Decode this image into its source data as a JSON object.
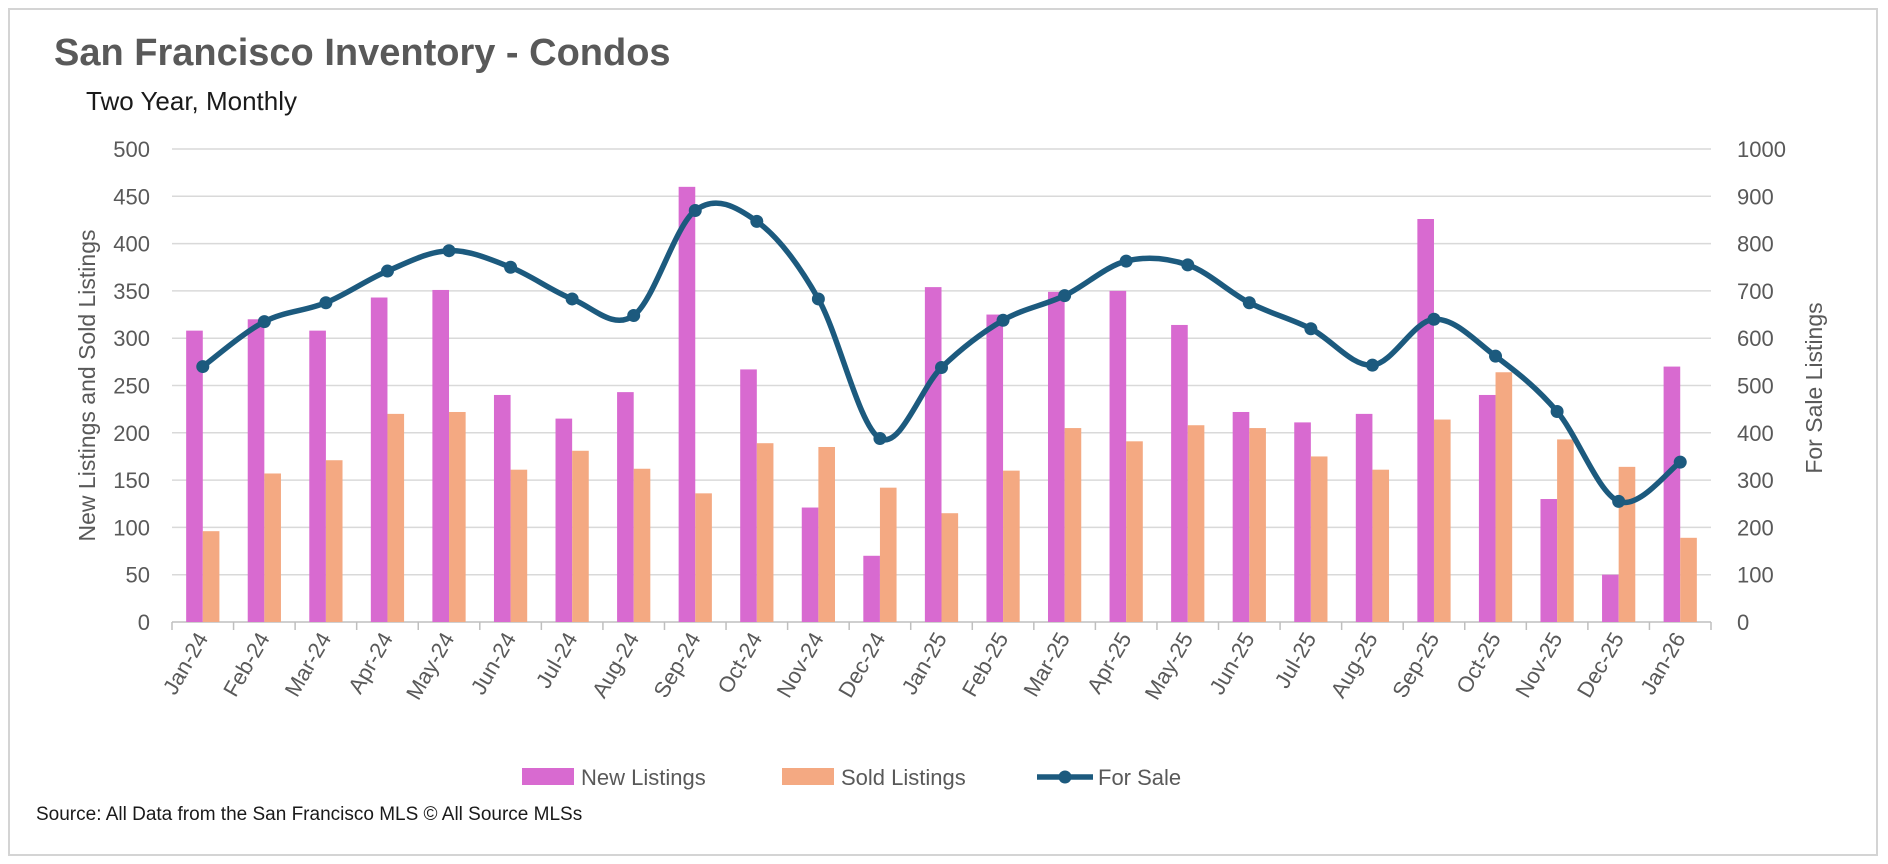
{
  "title": "San Francisco  Inventory - Condos",
  "subtitle": "Two Year, Monthly",
  "source": "Source: All Data from the San Francisco MLS © All Source MLSs",
  "chart_data": {
    "type": "bar",
    "categories": [
      "Jan-24",
      "Feb-24",
      "Mar-24",
      "Apr-24",
      "May-24",
      "Jun-24",
      "Jul-24",
      "Aug-24",
      "Sep-24",
      "Oct-24",
      "Nov-24",
      "Dec-24",
      "Jan-25",
      "Feb-25",
      "Mar-25",
      "Apr-25",
      "May-25",
      "Jun-25",
      "Jul-25",
      "Aug-25",
      "Sep-25",
      "Oct-25",
      "Nov-25",
      "Dec-25",
      "Jan-26"
    ],
    "series": [
      {
        "name": "New Listings",
        "type": "bar",
        "axis": "left",
        "color": "#d86ad0",
        "values": [
          308,
          320,
          308,
          343,
          351,
          240,
          215,
          243,
          460,
          267,
          121,
          70,
          354,
          325,
          349,
          350,
          314,
          222,
          211,
          220,
          426,
          240,
          130,
          50,
          270
        ]
      },
      {
        "name": "Sold Listings",
        "type": "bar",
        "axis": "left",
        "color": "#f4a982",
        "values": [
          96,
          157,
          171,
          220,
          222,
          161,
          181,
          162,
          136,
          189,
          185,
          142,
          115,
          160,
          205,
          191,
          208,
          205,
          175,
          161,
          214,
          264,
          193,
          164,
          89
        ]
      },
      {
        "name": "For Sale",
        "type": "line",
        "axis": "right",
        "color": "#1c5a7e",
        "values": [
          540,
          635,
          675,
          742,
          785,
          750,
          683,
          648,
          870,
          847,
          683,
          388,
          538,
          638,
          690,
          763,
          755,
          675,
          620,
          543,
          640,
          562,
          445,
          255,
          338
        ]
      }
    ],
    "ylabel": "New Listings and Sold Listings",
    "ylabel_right": "For Sale Listings",
    "ylim": [
      0,
      500
    ],
    "ylim_right": [
      0,
      1000
    ],
    "yticks": [
      0,
      50,
      100,
      150,
      200,
      250,
      300,
      350,
      400,
      450,
      500
    ],
    "yticks_right": [
      0,
      100,
      200,
      300,
      400,
      500,
      600,
      700,
      800,
      900,
      1000
    ],
    "grid": true,
    "legend_position": "bottom"
  }
}
